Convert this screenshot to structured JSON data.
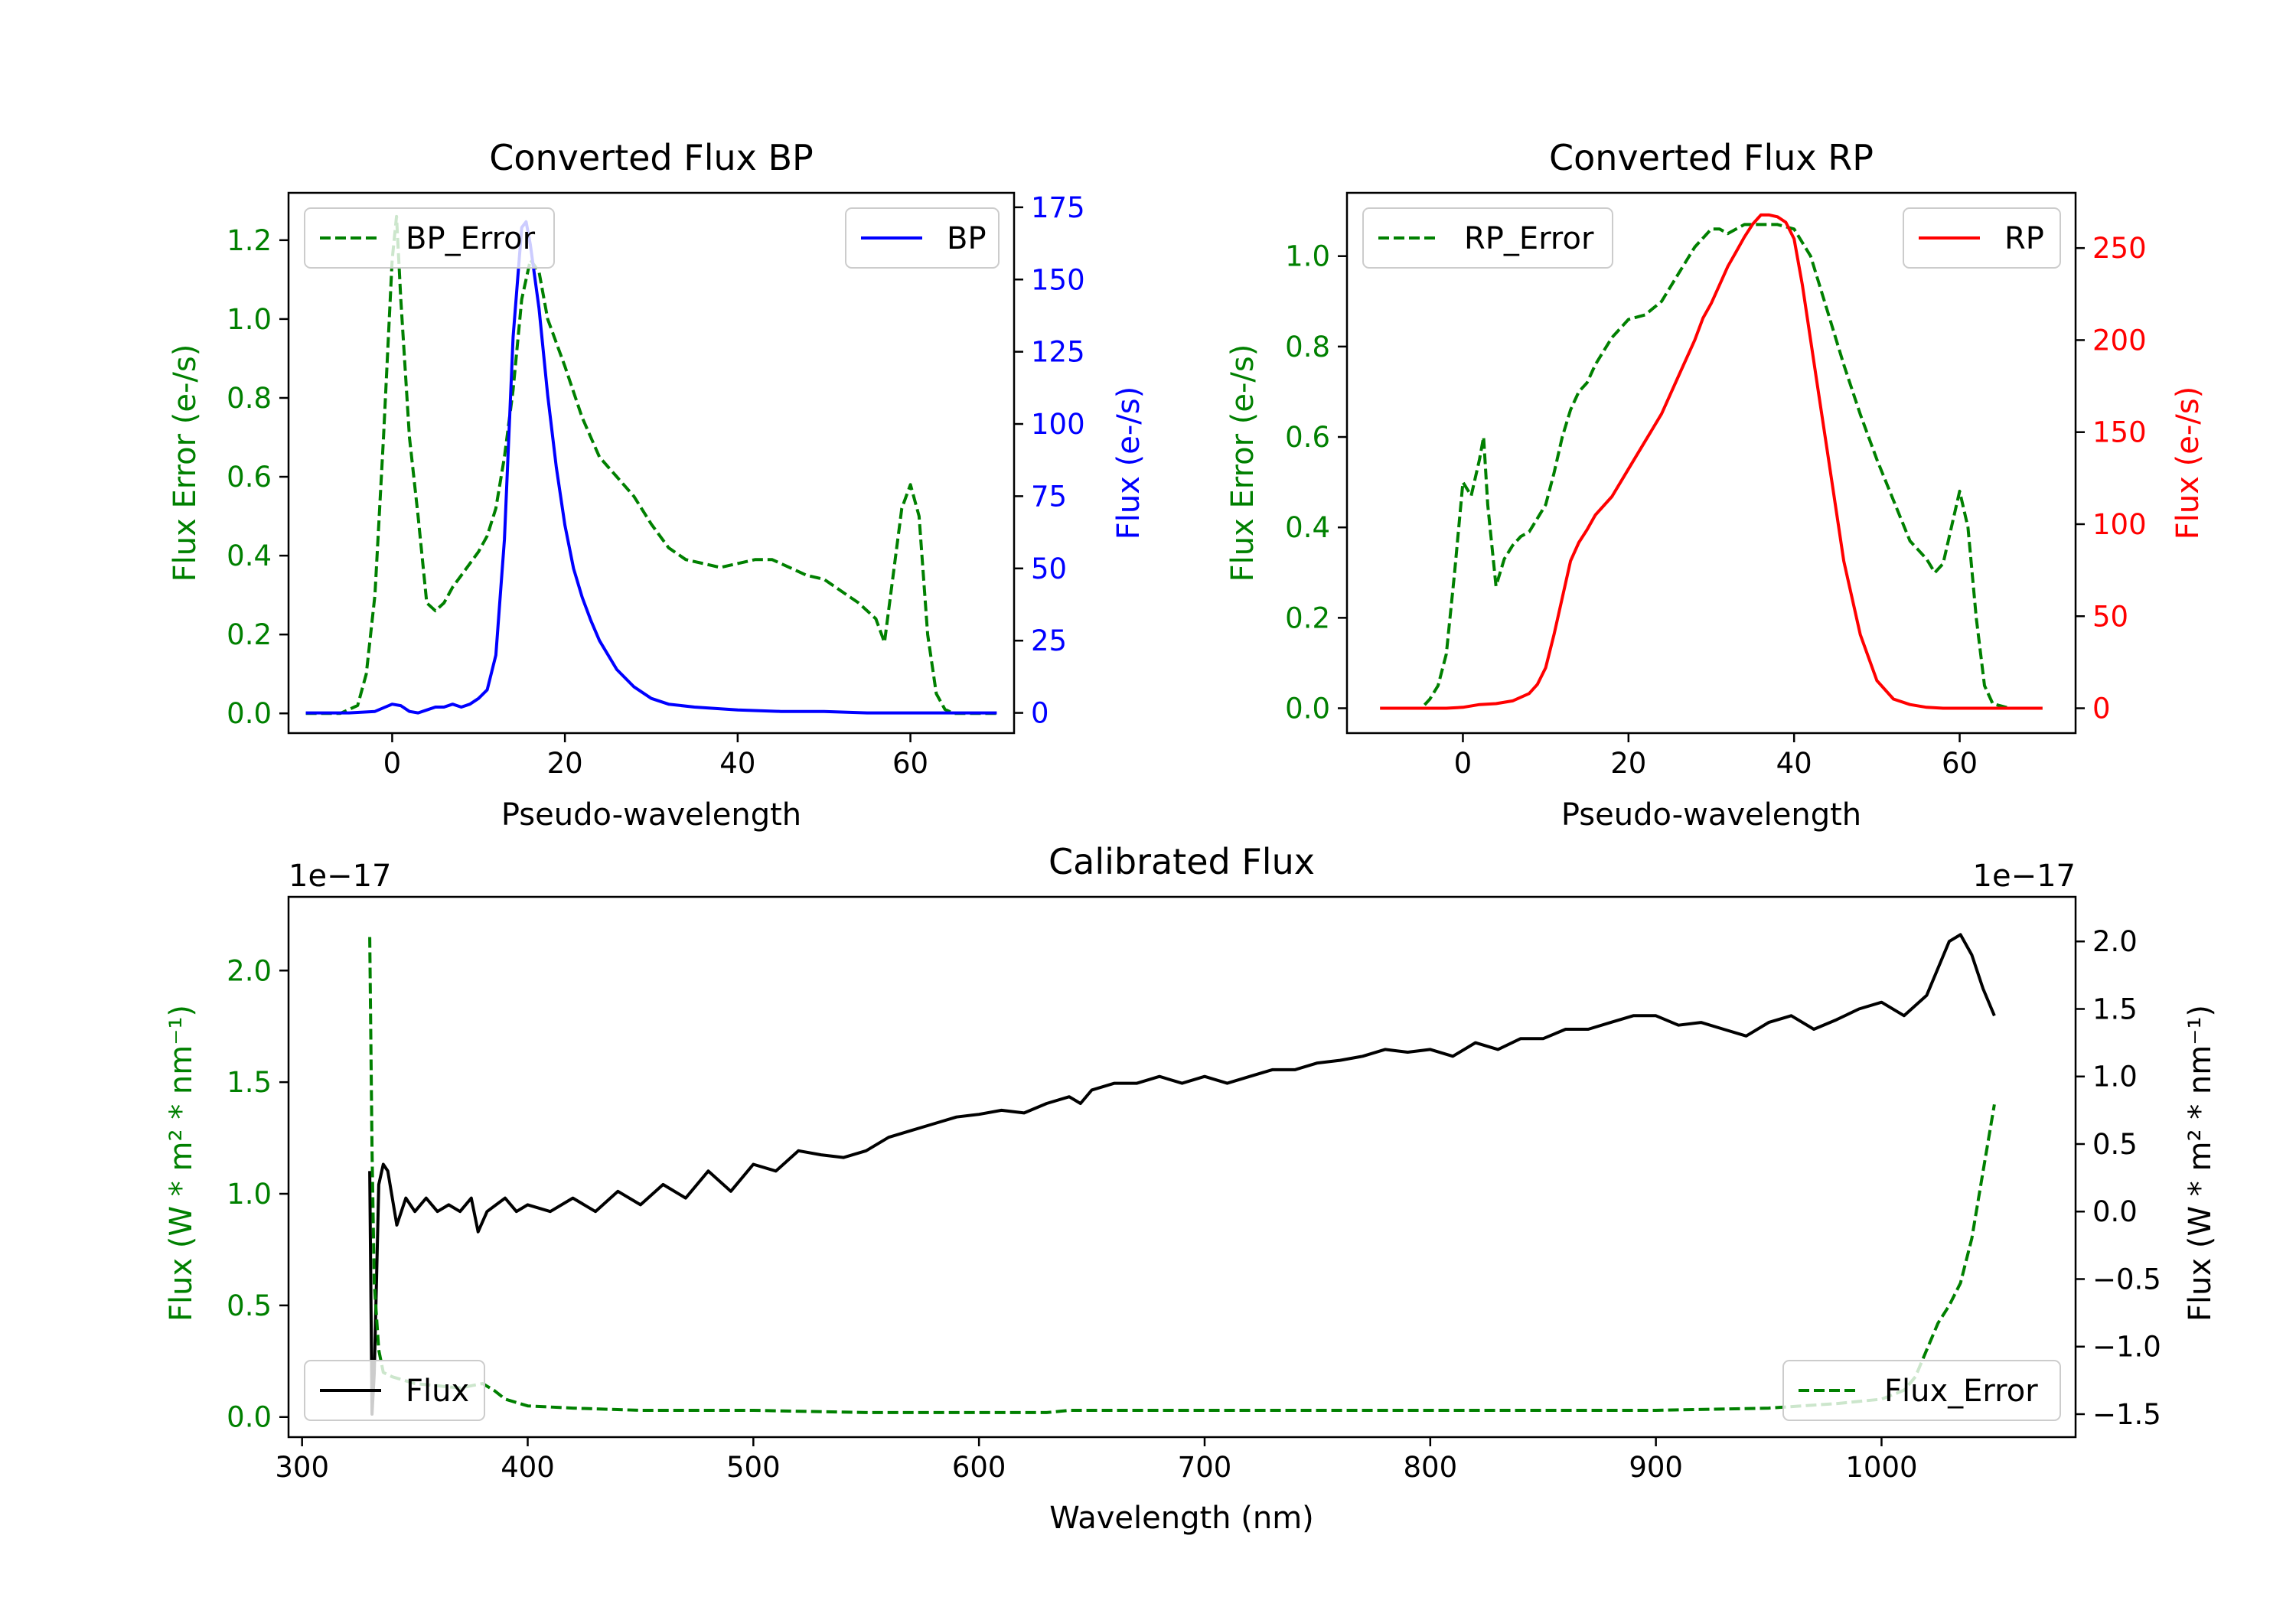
{
  "chart_data": [
    {
      "type": "line",
      "title": "Converted Flux BP",
      "xlabel": "Pseudo-wavelength",
      "xlim": [
        -12,
        72
      ],
      "xticks": [
        0,
        20,
        40,
        60
      ],
      "left_axis": {
        "label": "Flux Error (e-/s)",
        "color": "#008000",
        "ylim": [
          -0.05,
          1.32
        ],
        "ticks": [
          0.0,
          0.2,
          0.4,
          0.6,
          0.8,
          1.0,
          1.2
        ],
        "tick_labels": [
          "0.0",
          "0.2",
          "0.4",
          "0.6",
          "0.8",
          "1.0",
          "1.2"
        ]
      },
      "right_axis": {
        "label": "Flux (e-/s)",
        "color": "#0000ff",
        "ylim": [
          -7,
          180
        ],
        "ticks": [
          0,
          25,
          50,
          75,
          100,
          125,
          150,
          175
        ],
        "tick_labels": [
          "0",
          "25",
          "50",
          "75",
          "100",
          "125",
          "150",
          "175"
        ]
      },
      "series": [
        {
          "name": "BP_Error",
          "axis": "left",
          "style": "dashed",
          "color": "#008000",
          "x": [
            -10,
            -6,
            -4,
            -3,
            -2,
            -1,
            0,
            0.5,
            1,
            2,
            3,
            4,
            5,
            6,
            7,
            8,
            9,
            10,
            11,
            12,
            13,
            14,
            15,
            16,
            17,
            18,
            20,
            22,
            24,
            26,
            28,
            30,
            32,
            34,
            36,
            38,
            40,
            42,
            44,
            46,
            48,
            50,
            52,
            54,
            56,
            57,
            58,
            59,
            60,
            61,
            62,
            63,
            64,
            65,
            66,
            68,
            70
          ],
          "y": [
            0.0,
            0.0,
            0.02,
            0.1,
            0.3,
            0.7,
            1.15,
            1.26,
            1.05,
            0.7,
            0.5,
            0.28,
            0.26,
            0.28,
            0.32,
            0.35,
            0.38,
            0.41,
            0.45,
            0.52,
            0.65,
            0.82,
            1.05,
            1.15,
            1.12,
            1.0,
            0.88,
            0.75,
            0.65,
            0.6,
            0.55,
            0.48,
            0.42,
            0.39,
            0.38,
            0.37,
            0.38,
            0.39,
            0.39,
            0.37,
            0.35,
            0.34,
            0.31,
            0.28,
            0.24,
            0.18,
            0.35,
            0.52,
            0.58,
            0.5,
            0.2,
            0.05,
            0.01,
            0.0,
            0.0,
            0.0,
            0.0
          ]
        },
        {
          "name": "BP",
          "axis": "right",
          "style": "solid",
          "color": "#0000ff",
          "x": [
            -10,
            -5,
            -2,
            0,
            1,
            2,
            3,
            4,
            5,
            6,
            7,
            8,
            9,
            10,
            11,
            12,
            13,
            14,
            15,
            15.5,
            16,
            17,
            18,
            19,
            20,
            21,
            22,
            23,
            24,
            26,
            28,
            30,
            32,
            35,
            40,
            45,
            50,
            55,
            60,
            65,
            70
          ],
          "y": [
            0,
            0,
            0.5,
            3,
            2.5,
            0.5,
            0,
            1,
            2,
            2,
            3,
            2,
            3,
            5,
            8,
            20,
            60,
            130,
            168,
            170,
            162,
            140,
            110,
            85,
            65,
            50,
            40,
            32,
            25,
            15,
            9,
            5,
            3,
            2,
            1,
            0.5,
            0.5,
            0,
            0,
            0,
            0
          ]
        }
      ],
      "legends": [
        {
          "entries": [
            "BP_Error"
          ],
          "position": "upper-left"
        },
        {
          "entries": [
            "BP"
          ],
          "position": "upper-right"
        }
      ]
    },
    {
      "type": "line",
      "title": "Converted Flux RP",
      "xlabel": "Pseudo-wavelength",
      "xlim": [
        -14,
        74
      ],
      "xticks": [
        0,
        20,
        40,
        60
      ],
      "left_axis": {
        "label": "Flux Error (e-/s)",
        "color": "#008000",
        "ylim": [
          -0.055,
          1.14
        ],
        "ticks": [
          0.0,
          0.2,
          0.4,
          0.6,
          0.8,
          1.0
        ],
        "tick_labels": [
          "0.0",
          "0.2",
          "0.4",
          "0.6",
          "0.8",
          "1.0"
        ]
      },
      "right_axis": {
        "label": "Flux (e-/s)",
        "color": "#ff0000",
        "ylim": [
          -13.5,
          280
        ],
        "ticks": [
          0,
          50,
          100,
          150,
          200,
          250
        ],
        "tick_labels": [
          "0",
          "50",
          "100",
          "150",
          "200",
          "250"
        ]
      },
      "series": [
        {
          "name": "RP_Error",
          "axis": "left",
          "style": "dashed",
          "color": "#008000",
          "x": [
            -10,
            -5,
            -4,
            -3,
            -2,
            -1,
            0,
            1,
            2,
            2.5,
            3,
            4,
            5,
            6,
            7,
            8,
            9,
            10,
            11,
            12,
            13,
            14,
            15,
            16,
            18,
            20,
            22,
            24,
            26,
            28,
            30,
            31,
            32,
            34,
            36,
            38,
            40,
            42,
            44,
            46,
            48,
            50,
            52,
            54,
            55,
            56,
            57,
            58,
            59,
            60,
            61,
            62,
            63,
            64,
            66,
            70
          ],
          "y": [
            0.0,
            0.0,
            0.02,
            0.05,
            0.12,
            0.3,
            0.5,
            0.47,
            0.55,
            0.6,
            0.45,
            0.27,
            0.33,
            0.36,
            0.38,
            0.39,
            0.42,
            0.45,
            0.52,
            0.6,
            0.66,
            0.7,
            0.72,
            0.76,
            0.82,
            0.86,
            0.87,
            0.9,
            0.96,
            1.02,
            1.06,
            1.06,
            1.05,
            1.07,
            1.07,
            1.07,
            1.06,
            1.0,
            0.88,
            0.76,
            0.65,
            0.55,
            0.46,
            0.37,
            0.35,
            0.33,
            0.3,
            0.32,
            0.4,
            0.48,
            0.4,
            0.2,
            0.05,
            0.01,
            0.0,
            0.0
          ]
        },
        {
          "name": "RP",
          "axis": "right",
          "style": "solid",
          "color": "#ff0000",
          "x": [
            -10,
            -5,
            -2,
            0,
            2,
            4,
            6,
            8,
            9,
            10,
            11,
            12,
            13,
            14,
            15,
            16,
            18,
            20,
            22,
            24,
            26,
            28,
            29,
            30,
            31,
            32,
            33,
            34,
            35,
            36,
            37,
            38,
            39,
            40,
            41,
            42,
            43,
            44,
            45,
            46,
            48,
            50,
            52,
            54,
            56,
            58,
            60,
            62,
            65,
            70
          ],
          "y": [
            0,
            0,
            0,
            0.5,
            2,
            2.5,
            4,
            8,
            13,
            22,
            40,
            60,
            80,
            90,
            97,
            105,
            115,
            130,
            145,
            160,
            180,
            200,
            212,
            220,
            230,
            240,
            248,
            256,
            263,
            268,
            268,
            267,
            264,
            255,
            230,
            200,
            170,
            140,
            110,
            80,
            40,
            15,
            5,
            2,
            0.5,
            0,
            0,
            0,
            0,
            0
          ]
        }
      ],
      "legends": [
        {
          "entries": [
            "RP_Error"
          ],
          "position": "upper-left"
        },
        {
          "entries": [
            "RP"
          ],
          "position": "upper-right"
        }
      ]
    },
    {
      "type": "line",
      "title": "Calibrated Flux",
      "xlabel": "Wavelength (nm)",
      "xlim": [
        294,
        1086
      ],
      "xticks": [
        300,
        400,
        500,
        600,
        700,
        800,
        900,
        1000
      ],
      "left_axis": {
        "label": "Flux (W * m² * nm⁻¹)",
        "color": "#008000",
        "offset_text": "1e−17",
        "ylim": [
          -0.09,
          2.33
        ],
        "ticks": [
          0.0,
          0.5,
          1.0,
          1.5,
          2.0
        ],
        "tick_labels": [
          "0.0",
          "0.5",
          "1.0",
          "1.5",
          "2.0"
        ]
      },
      "right_axis": {
        "label": "Flux (W * m² * nm⁻¹)",
        "color": "#000000",
        "offset_text": "1e−17",
        "ylim": [
          -1.67,
          2.33
        ],
        "ticks": [
          -1.5,
          -1.0,
          -0.5,
          0.0,
          0.5,
          1.0,
          1.5,
          2.0
        ],
        "tick_labels": [
          "−1.5",
          "−1.0",
          "−0.5",
          "0.0",
          "0.5",
          "1.0",
          "1.5",
          "2.0"
        ]
      },
      "series": [
        {
          "name": "Flux",
          "axis": "right",
          "style": "solid",
          "color": "#000000",
          "x": [
            330,
            331,
            332,
            333,
            334,
            336,
            338,
            340,
            342,
            344,
            346,
            350,
            355,
            360,
            365,
            370,
            375,
            378,
            382,
            386,
            390,
            395,
            400,
            410,
            420,
            430,
            440,
            450,
            460,
            470,
            480,
            490,
            500,
            510,
            520,
            530,
            540,
            550,
            560,
            570,
            580,
            590,
            600,
            610,
            620,
            630,
            640,
            645,
            650,
            660,
            670,
            680,
            690,
            700,
            710,
            720,
            730,
            740,
            750,
            760,
            770,
            780,
            790,
            800,
            810,
            820,
            830,
            840,
            850,
            860,
            870,
            880,
            890,
            900,
            910,
            920,
            930,
            940,
            950,
            960,
            970,
            980,
            990,
            1000,
            1010,
            1020,
            1030,
            1035,
            1040,
            1045,
            1050
          ],
          "y": [
            0.3,
            -1.5,
            -1.2,
            -0.5,
            0.2,
            0.35,
            0.3,
            0.1,
            -0.1,
            0.0,
            0.1,
            0.0,
            0.1,
            0.0,
            0.05,
            0.0,
            0.1,
            -0.15,
            0.0,
            0.05,
            0.1,
            0.0,
            0.05,
            0.0,
            0.1,
            0.0,
            0.15,
            0.05,
            0.2,
            0.1,
            0.3,
            0.15,
            0.35,
            0.3,
            0.45,
            0.42,
            0.4,
            0.45,
            0.55,
            0.6,
            0.65,
            0.7,
            0.72,
            0.75,
            0.73,
            0.8,
            0.85,
            0.8,
            0.9,
            0.95,
            0.95,
            1.0,
            0.95,
            1.0,
            0.95,
            1.0,
            1.05,
            1.05,
            1.1,
            1.12,
            1.15,
            1.2,
            1.18,
            1.2,
            1.15,
            1.25,
            1.2,
            1.28,
            1.28,
            1.35,
            1.35,
            1.4,
            1.45,
            1.45,
            1.38,
            1.4,
            1.35,
            1.3,
            1.4,
            1.45,
            1.35,
            1.42,
            1.5,
            1.55,
            1.45,
            1.6,
            2.0,
            2.05,
            1.9,
            1.65,
            1.45
          ]
        },
        {
          "name": "Flux_Error",
          "axis": "left",
          "style": "dashed",
          "color": "#008000",
          "x": [
            330,
            331,
            332,
            334,
            336,
            340,
            350,
            360,
            370,
            380,
            385,
            390,
            400,
            420,
            450,
            500,
            550,
            600,
            630,
            640,
            650,
            700,
            800,
            900,
            950,
            980,
            1000,
            1005,
            1010,
            1015,
            1020,
            1025,
            1030,
            1035,
            1040,
            1045,
            1050
          ],
          "y": [
            2.15,
            1.2,
            0.6,
            0.3,
            0.2,
            0.18,
            0.15,
            0.14,
            0.13,
            0.15,
            0.12,
            0.08,
            0.05,
            0.04,
            0.03,
            0.03,
            0.02,
            0.02,
            0.02,
            0.03,
            0.03,
            0.03,
            0.03,
            0.03,
            0.04,
            0.06,
            0.08,
            0.1,
            0.12,
            0.18,
            0.3,
            0.42,
            0.5,
            0.6,
            0.8,
            1.1,
            1.4
          ]
        }
      ],
      "legends": [
        {
          "entries": [
            "Flux"
          ],
          "position": "lower-left"
        },
        {
          "entries": [
            "Flux_Error"
          ],
          "position": "lower-right"
        }
      ]
    }
  ]
}
